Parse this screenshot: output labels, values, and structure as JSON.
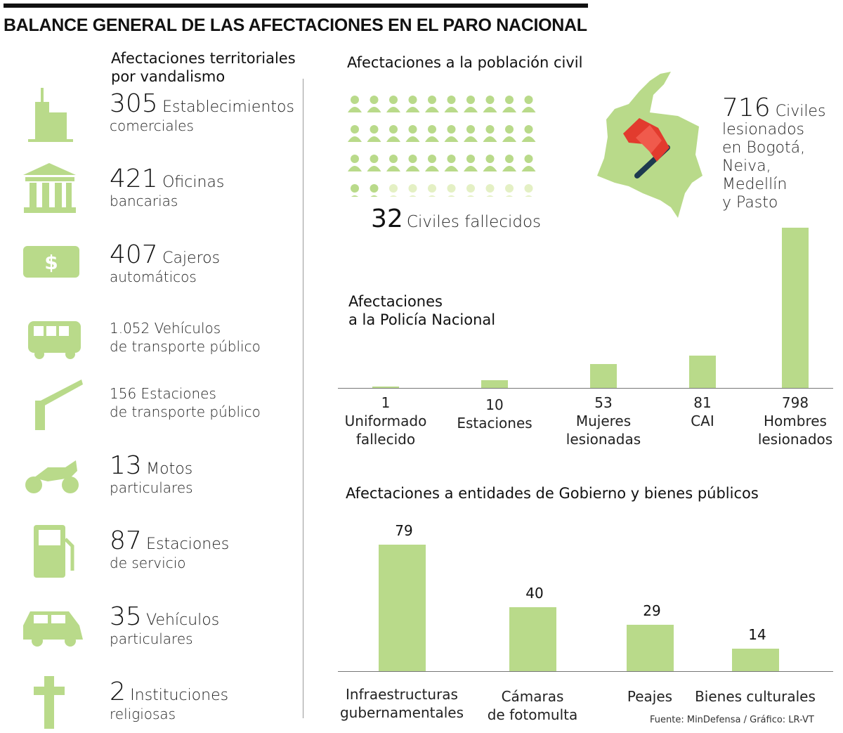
{
  "title": "BALANCE GENERAL DE LAS AFECTACIONES EN EL PARO NACIONAL",
  "territorial": {
    "heading_line1": "Afectaciones territoriales",
    "heading_line2": "por vandalismo",
    "items": [
      {
        "num": "305",
        "line1": "Establecimientos",
        "line2": "comerciales",
        "icon": "building-icon"
      },
      {
        "num": "421",
        "line1": "Oficinas",
        "line2": "bancarias",
        "icon": "bank-icon"
      },
      {
        "num": "407",
        "line1": "Cajeros",
        "line2": "automáticos",
        "icon": "dollar-bill-icon"
      },
      {
        "num": "1.052",
        "line1": "Vehículos",
        "line2": "de transporte público",
        "icon": "bus-icon"
      },
      {
        "num": "156",
        "line1": "Estaciones",
        "line2": "de transporte público",
        "icon": "barrier-icon"
      },
      {
        "num": "13",
        "line1": "Motos",
        "line2": "particulares",
        "icon": "motorcycle-icon"
      },
      {
        "num": "87",
        "line1": "Estaciones",
        "line2": "de servicio",
        "icon": "gas-pump-icon"
      },
      {
        "num": "35",
        "line1": "Vehículos",
        "line2": "particulares",
        "icon": "car-icon"
      },
      {
        "num": "2",
        "line1": "Instituciones",
        "line2": "religiosas",
        "icon": "cross-icon"
      }
    ]
  },
  "civil": {
    "heading": "Afectaciones a la población civil",
    "dead_num": "32",
    "dead_label": "Civiles fallecidos",
    "dead_count": 32,
    "icon_total": 40,
    "injured_num": "716",
    "injured_label": "Civiles",
    "injured_lines": [
      "lesionados",
      "en Bogotá,",
      "Neiva,",
      "Medellín",
      "y Pasto"
    ],
    "colors": {
      "dark": "#b9da8a",
      "light": "#e4f0c4",
      "flag": "#e23b2e"
    }
  },
  "chart_data": [
    {
      "type": "bar",
      "title": "Afectaciones a la Policía Nacional",
      "title_line1": "Afectaciones",
      "title_line2": "a la Policía Nacional",
      "categories": [
        [
          "1",
          "Uniformado",
          "fallecido"
        ],
        [
          "10",
          "Estaciones"
        ],
        [
          "53",
          "Mujeres",
          "lesionadas"
        ],
        [
          "81",
          "CAI"
        ],
        [
          "798",
          "Hombres",
          "lesionados"
        ]
      ],
      "values": [
        1,
        10,
        53,
        81,
        798
      ],
      "ylim": [
        0,
        798
      ],
      "grid": false
    },
    {
      "type": "bar",
      "title": "Afectaciones a entidades de Gobierno y bienes públicos",
      "categories": [
        [
          "Infraestructuras",
          "gubernamentales"
        ],
        [
          "Cámaras",
          "de fotomulta"
        ],
        [
          "Peajes"
        ],
        [
          "Bienes culturales"
        ]
      ],
      "values": [
        79,
        40,
        29,
        14
      ],
      "value_labels": [
        "79",
        "40",
        "29",
        "14"
      ],
      "ylim": [
        0,
        79
      ],
      "grid": false
    }
  ],
  "source": "Fuente: MinDefensa / Gráfico: LR-VT"
}
